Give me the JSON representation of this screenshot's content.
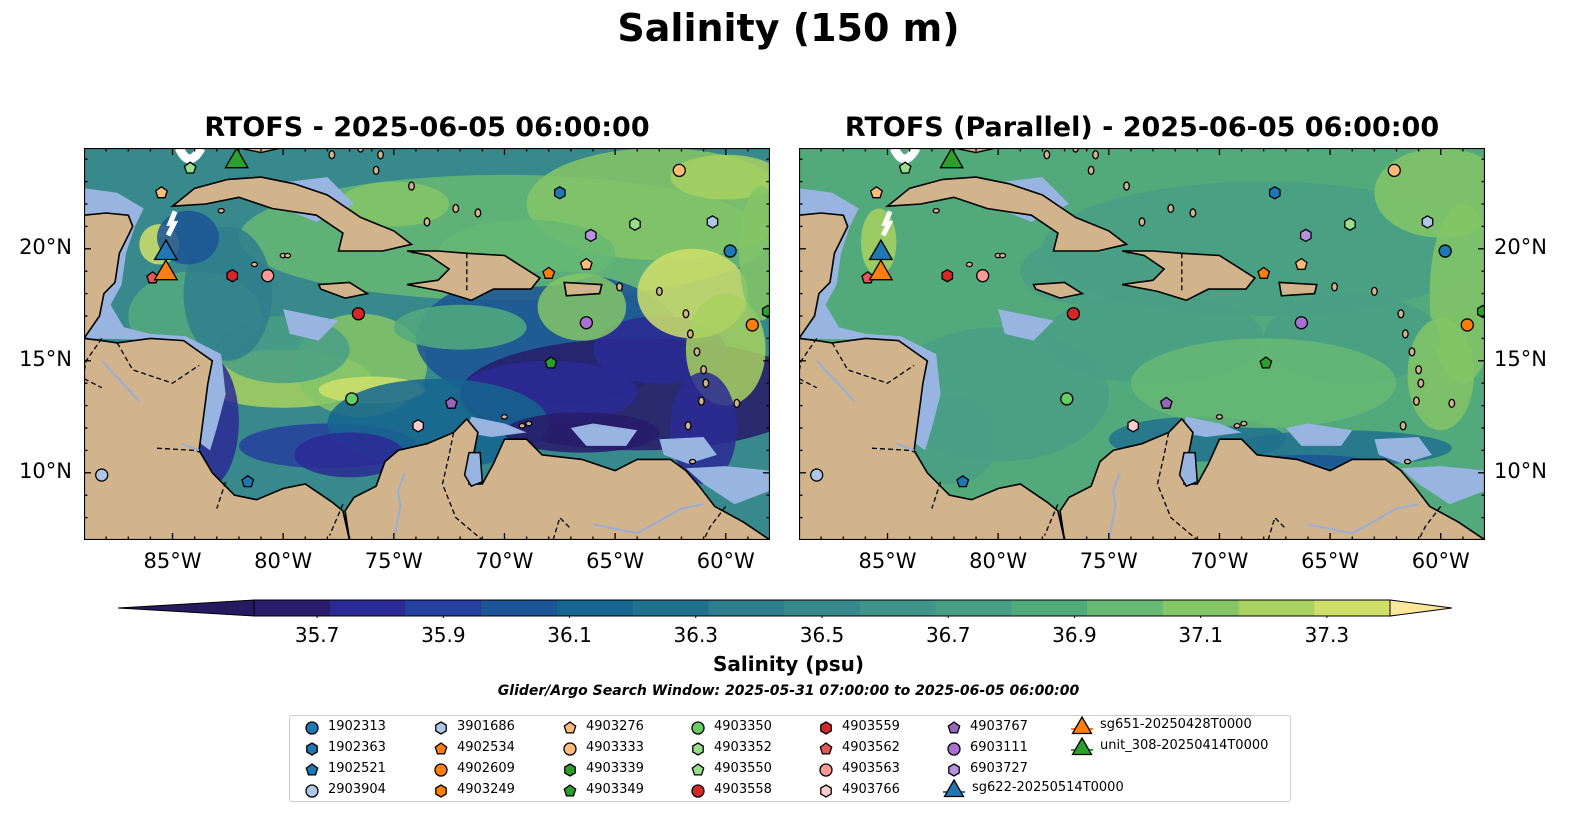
{
  "title": "Salinity (150 m)",
  "panels": [
    {
      "title": "RTOFS - 2025-06-05 06:00:00"
    },
    {
      "title": "RTOFS (Parallel) - 2025-06-05 06:00:00"
    }
  ],
  "map": {
    "lon_range": [
      -89,
      -58
    ],
    "lat_range": [
      7,
      24.5
    ],
    "lon_ticks": [
      -85,
      -80,
      -75,
      -70,
      -65,
      -60
    ],
    "lon_tick_labels": [
      "85°W",
      "80°W",
      "75°W",
      "70°W",
      "65°W",
      "60°W"
    ],
    "lat_ticks": [
      10,
      15,
      20
    ],
    "lat_tick_labels": [
      "10°N",
      "15°N",
      "20°N"
    ],
    "colors": {
      "land": "#d2b48c",
      "shallow": "#98b4e0",
      "coast": "#000000"
    }
  },
  "colorbar": {
    "label": "Salinity (psu)",
    "range": [
      35.6,
      37.4
    ],
    "ticks": [
      "35.7",
      "35.9",
      "36.1",
      "36.3",
      "36.5",
      "36.7",
      "36.9",
      "37.1",
      "37.3"
    ],
    "tick_values": [
      35.7,
      35.9,
      36.1,
      36.3,
      36.5,
      36.7,
      36.9,
      37.1,
      37.3
    ],
    "colors": [
      "#281b6a",
      "#2b2a94",
      "#26409e",
      "#1b5595",
      "#15658f",
      "#21718e",
      "#2f7e8d",
      "#38898b",
      "#40948a",
      "#489f84",
      "#52aa7c",
      "#66b873",
      "#84c566",
      "#a8d160",
      "#cfdf6a"
    ],
    "extend_low_color": "#261a5e",
    "extend_high_color": "#f9e79b"
  },
  "search_window": "Glider/Argo Search Window: 2025-05-31 07:00:00 to 2025-06-05 06:00:00",
  "legend": [
    {
      "label": "1902313",
      "marker": "circle",
      "color": "#1f77b4"
    },
    {
      "label": "1902363",
      "marker": "hexagon",
      "color": "#1f77b4"
    },
    {
      "label": "1902521",
      "marker": "pentagon",
      "color": "#1f77b4"
    },
    {
      "label": "2903904",
      "marker": "circle",
      "color": "#aec7e8"
    },
    {
      "label": "3901686",
      "marker": "hexagon",
      "color": "#aec7e8"
    },
    {
      "label": "4902534",
      "marker": "pentagon",
      "color": "#ff7f0e"
    },
    {
      "label": "4902609",
      "marker": "circle",
      "color": "#ff7f0e"
    },
    {
      "label": "4903249",
      "marker": "hexagon",
      "color": "#ff7f0e"
    },
    {
      "label": "4903276",
      "marker": "pentagon",
      "color": "#ffbb78"
    },
    {
      "label": "4903333",
      "marker": "circle",
      "color": "#ffbb78"
    },
    {
      "label": "4903339",
      "marker": "hexagon",
      "color": "#2ca02c"
    },
    {
      "label": "4903349",
      "marker": "pentagon",
      "color": "#2ca02c"
    },
    {
      "label": "4903350",
      "marker": "circle",
      "color": "#66cc66"
    },
    {
      "label": "4903352",
      "marker": "hexagon",
      "color": "#98df8a"
    },
    {
      "label": "4903550",
      "marker": "pentagon",
      "color": "#98df8a"
    },
    {
      "label": "4903558",
      "marker": "circle",
      "color": "#d62728"
    },
    {
      "label": "4903559",
      "marker": "hexagon",
      "color": "#d62728"
    },
    {
      "label": "4903562",
      "marker": "pentagon",
      "color": "#e45756"
    },
    {
      "label": "4903563",
      "marker": "circle",
      "color": "#ff9896"
    },
    {
      "label": "4903766",
      "marker": "hexagon",
      "color": "#ffcccc"
    },
    {
      "label": "4903767",
      "marker": "pentagon",
      "color": "#9467bd"
    },
    {
      "label": "6903111",
      "marker": "circle",
      "color": "#a970d4"
    },
    {
      "label": "6903727",
      "marker": "hexagon",
      "color": "#b792e0"
    },
    {
      "label": "sg622-20250514T0000",
      "marker": "triangle",
      "color": "#1f77b4"
    },
    {
      "label": "sg651-20250428T0000",
      "marker": "triangle",
      "color": "#ff7f0e"
    },
    {
      "label": "unit_308-20250414T0000",
      "marker": "triangle",
      "color": "#2ca02c"
    }
  ],
  "markers": [
    {
      "label": "1902313",
      "lon": -59.8,
      "lat": 19.9
    },
    {
      "label": "1902363",
      "lon": -67.5,
      "lat": 22.5
    },
    {
      "label": "1902521",
      "lon": -81.6,
      "lat": 9.6
    },
    {
      "label": "2903904",
      "lon": -88.2,
      "lat": 9.9
    },
    {
      "label": "3901686",
      "lon": -60.6,
      "lat": 21.2
    },
    {
      "label": "4902534",
      "lon": -68.0,
      "lat": 18.9
    },
    {
      "label": "4902609",
      "lon": -58.8,
      "lat": 16.6
    },
    {
      "label": "4903276",
      "lon": -85.5,
      "lat": 22.5
    },
    {
      "label": "4903333",
      "lon": -62.1,
      "lat": 23.5
    },
    {
      "label": "4903339",
      "lon": -58.1,
      "lat": 17.2
    },
    {
      "label": "4903349",
      "lon": -67.9,
      "lat": 14.9
    },
    {
      "label": "4903350",
      "lon": -76.9,
      "lat": 13.3
    },
    {
      "label": "4903352",
      "lon": -64.1,
      "lat": 21.1
    },
    {
      "label": "4903550",
      "lon": -84.2,
      "lat": 23.6
    },
    {
      "label": "4903558",
      "lon": -76.6,
      "lat": 17.1
    },
    {
      "label": "4903559",
      "lon": -82.3,
      "lat": 18.8
    },
    {
      "label": "4903562",
      "lon": -85.9,
      "lat": 18.7
    },
    {
      "label": "4903563",
      "lon": -80.7,
      "lat": 18.8
    },
    {
      "label": "4903766",
      "lon": -73.9,
      "lat": 12.1
    },
    {
      "label": "4903767",
      "lon": -72.4,
      "lat": 13.1
    },
    {
      "label": "6903111",
      "lon": -66.3,
      "lat": 16.7
    },
    {
      "label": "6903727",
      "lon": -66.1,
      "lat": 20.6
    },
    {
      "label": "6903727b",
      "lon": -66.3,
      "lat": 19.3,
      "marker": "pentagon",
      "color": "#ffbb78"
    },
    {
      "label": "sg622-20250514T0000",
      "lon": -85.3,
      "lat": 19.9
    },
    {
      "label": "sg651-20250428T0000",
      "lon": -85.3,
      "lat": 19.0
    },
    {
      "label": "unit_308-20250414T0000",
      "lon": -82.1,
      "lat": 24.0
    }
  ]
}
